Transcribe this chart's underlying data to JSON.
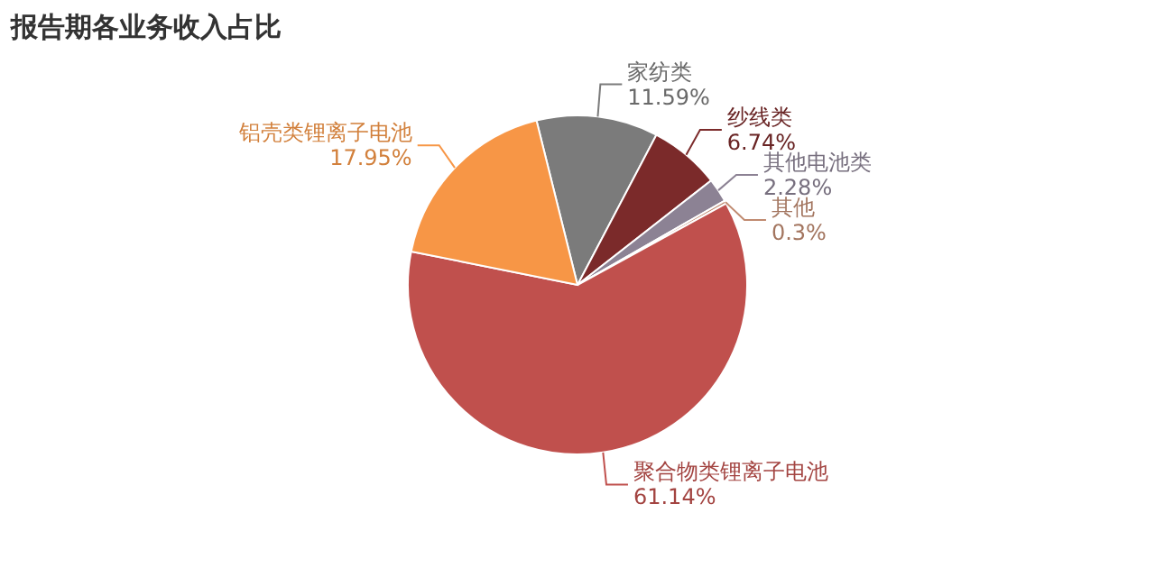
{
  "chart_data": {
    "type": "pie",
    "title": "报告期各业务收入占比",
    "categories": [
      "家纺类",
      "纱线类",
      "其他电池类",
      "其他",
      "聚合物类锂离子电池",
      "铝壳类锂离子电池"
    ],
    "values": [
      11.59,
      6.74,
      2.28,
      0.3,
      61.14,
      17.95
    ],
    "colors": [
      "#7b7b7b",
      "#7b2a2a",
      "#8c8294",
      "#c08a70",
      "#c0504d",
      "#f79646"
    ],
    "value_labels": [
      "11.59%",
      "6.74%",
      "2.28%",
      "0.3%",
      "61.14%",
      "17.95%"
    ],
    "legend": false
  }
}
